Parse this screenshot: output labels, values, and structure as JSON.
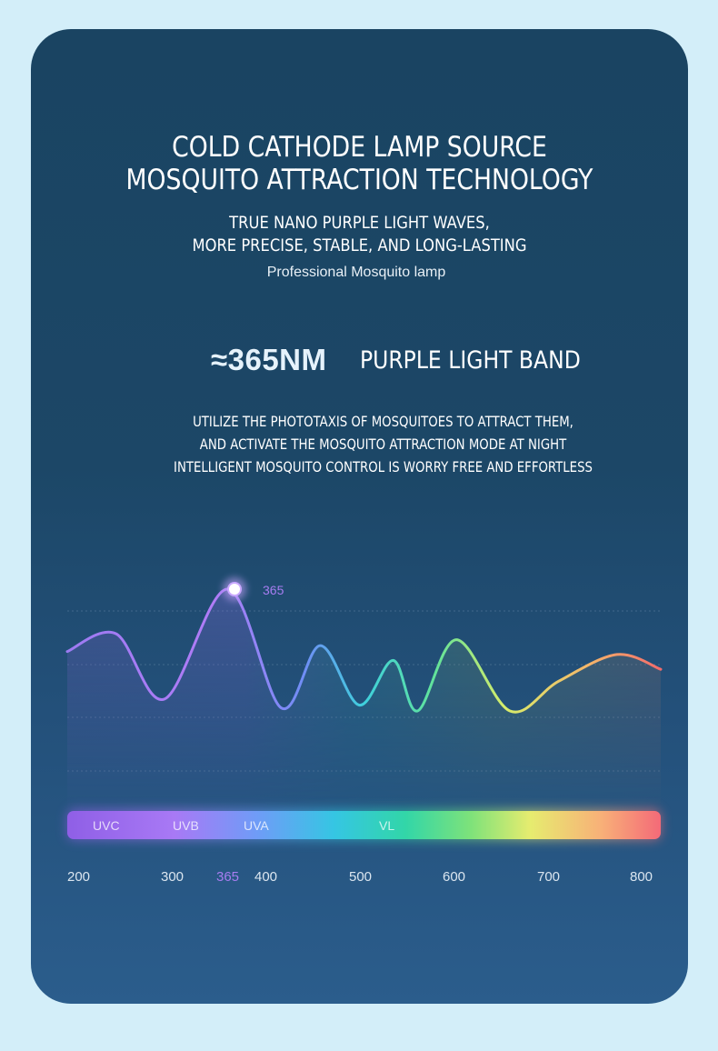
{
  "heading": {
    "line1": "COLD CATHODE LAMP SOURCE",
    "line2": "MOSQUITO ATTRACTION TECHNOLOGY"
  },
  "subheading": {
    "line1": "TRUE NANO PURPLE LIGHT WAVES,",
    "line2": "MORE PRECISE, STABLE, AND LONG-LASTING"
  },
  "tagline": "Professional Mosquito lamp",
  "band": {
    "value": "≈365NM",
    "label": "PURPLE LIGHT BAND"
  },
  "description": {
    "line1": "UTILIZE THE PHOTOTAXIS OF MOSQUITOES TO ATTRACT THEM,",
    "line2": "AND ACTIVATE THE MOSQUITO ATTRACTION MODE AT NIGHT",
    "line3": "INTELLIGENT MOSQUITO CONTROL IS WORRY FREE AND EFFORTLESS"
  },
  "colors": {
    "page_background": "#d3eef9",
    "card_background": "#1c4767",
    "peak_label": "#a77df0",
    "spectrum": [
      "#8b5cf6",
      "#a78bfa",
      "#38bdf8",
      "#2dd4bf",
      "#4ade80",
      "#fde047",
      "#fb923c",
      "#f87171"
    ]
  },
  "chart_data": {
    "type": "line",
    "x": [
      200,
      250,
      300,
      365,
      420,
      460,
      500,
      535,
      560,
      600,
      655,
      705,
      765,
      810
    ],
    "y": [
      0.76,
      0.82,
      0.6,
      0.97,
      0.57,
      0.78,
      0.58,
      0.73,
      0.56,
      0.8,
      0.56,
      0.66,
      0.75,
      0.7
    ],
    "x_ticks": [
      "200",
      "300",
      "365",
      "400",
      "500",
      "600",
      "700",
      "800"
    ],
    "highlight": {
      "x": 365,
      "label": "365"
    },
    "bands": [
      "UVC",
      "UVB",
      "UVA",
      "VL"
    ]
  }
}
